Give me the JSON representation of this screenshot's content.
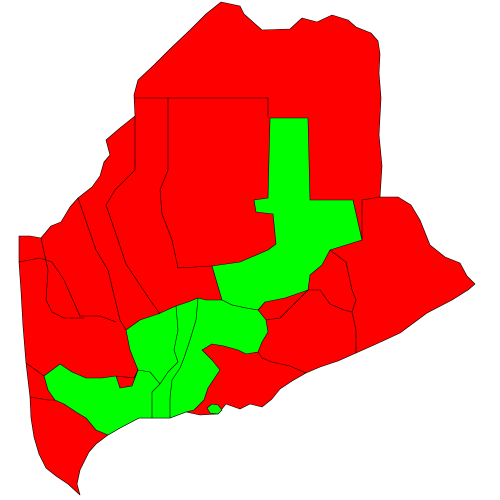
{
  "map": {
    "colors": {
      "red": "#ff0000",
      "green": "#00ff00",
      "border": "#000000",
      "background": "#ffffff"
    },
    "regions": [
      {
        "id": "northern-territory",
        "group": "red"
      },
      {
        "id": "eastern-territory",
        "group": "red"
      },
      {
        "id": "southern-territory",
        "group": "red"
      },
      {
        "id": "central-corridor",
        "group": "green"
      },
      {
        "id": "southwestern-territory",
        "group": "green"
      },
      {
        "id": "small-island",
        "group": "green"
      }
    ]
  }
}
